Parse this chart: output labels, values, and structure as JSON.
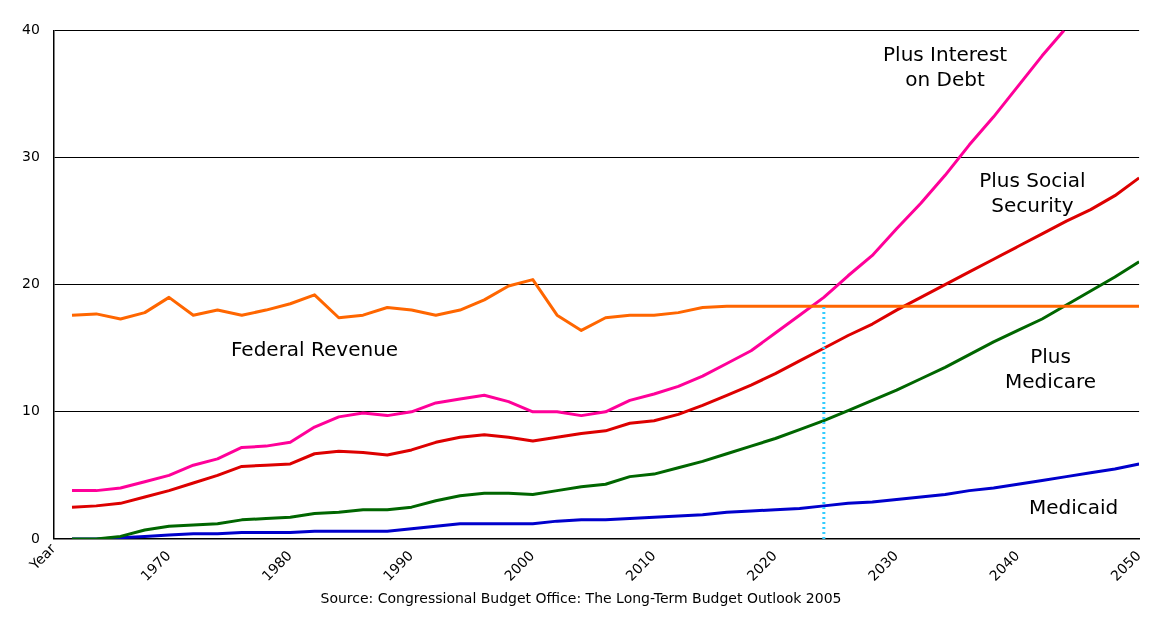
{
  "chart_data": {
    "type": "line",
    "xlabel": "Year",
    "x": [
      1962,
      1964,
      1966,
      1968,
      1970,
      1972,
      1974,
      1976,
      1978,
      1980,
      1982,
      1984,
      1986,
      1988,
      1990,
      1992,
      1994,
      1996,
      1998,
      2000,
      2002,
      2004,
      2006,
      2008,
      2010,
      2012,
      2014,
      2016,
      2018,
      2020,
      2022,
      2024,
      2026,
      2028,
      2030,
      2032,
      2034,
      2036,
      2038,
      2040,
      2042,
      2044,
      2046,
      2048,
      2050
    ],
    "series": [
      {
        "name": "Federal Revenue",
        "color": "#ff6600",
        "values": [
          17.6,
          17.7,
          17.3,
          17.8,
          19.0,
          17.6,
          18.0,
          17.6,
          18.0,
          18.5,
          19.2,
          17.4,
          17.6,
          18.2,
          18.0,
          17.6,
          18.0,
          18.8,
          19.9,
          20.4,
          17.6,
          16.4,
          17.4,
          17.6,
          17.6,
          17.8,
          18.2,
          18.3,
          18.3,
          18.3,
          18.3,
          18.3,
          18.3,
          18.3,
          18.3,
          18.3,
          18.3,
          18.3,
          18.3,
          18.3,
          18.3,
          18.3,
          18.3,
          18.3,
          18.3
        ]
      },
      {
        "name": "Plus Interest on Debt",
        "color": "#ff0099",
        "x": [
          1962,
          1964,
          1966,
          1968,
          1970,
          1972,
          1974,
          1976,
          1978,
          1980,
          1982,
          1984,
          1986,
          1988,
          1990,
          1992,
          1994,
          1996,
          1998,
          2000,
          2002,
          2004,
          2006,
          2008,
          2010,
          2012,
          2014,
          2016,
          2018,
          2020,
          2022,
          2024,
          2026,
          2028,
          2030,
          2032,
          2034,
          2036,
          2038,
          2040,
          2042,
          2043.8
        ],
        "values": [
          3.8,
          3.8,
          4.0,
          4.5,
          5.0,
          5.8,
          6.3,
          7.2,
          7.3,
          7.6,
          8.8,
          9.6,
          9.9,
          9.7,
          10.0,
          10.7,
          11.0,
          11.3,
          10.8,
          10.0,
          10.0,
          9.7,
          10.0,
          10.9,
          11.4,
          12.0,
          12.8,
          13.8,
          14.8,
          16.2,
          17.6,
          19.0,
          20.7,
          22.3,
          24.4,
          26.4,
          28.6,
          31.0,
          33.2,
          35.6,
          38.0,
          40
        ]
      },
      {
        "name": "Plus Social Security",
        "color": "#dd0000",
        "values": [
          2.5,
          2.6,
          2.8,
          3.3,
          3.8,
          4.4,
          5.0,
          5.7,
          5.8,
          5.9,
          6.7,
          6.9,
          6.8,
          6.6,
          7.0,
          7.6,
          8.0,
          8.2,
          8.0,
          7.7,
          8.0,
          8.3,
          8.5,
          9.1,
          9.3,
          9.8,
          10.5,
          11.3,
          12.1,
          13.0,
          14.0,
          15.0,
          16.0,
          16.9,
          18.0,
          19.0,
          20.0,
          21.0,
          22.0,
          23.0,
          24.0,
          25.0,
          25.9,
          27.0,
          28.4
        ]
      },
      {
        "name": "Plus Medicare",
        "color": "#006600",
        "values": [
          0,
          0,
          0.2,
          0.7,
          1.0,
          1.1,
          1.2,
          1.5,
          1.6,
          1.7,
          2.0,
          2.1,
          2.3,
          2.3,
          2.5,
          3.0,
          3.4,
          3.6,
          3.6,
          3.5,
          3.8,
          4.1,
          4.3,
          4.9,
          5.1,
          5.6,
          6.1,
          6.7,
          7.3,
          7.9,
          8.6,
          9.3,
          10.1,
          10.9,
          11.7,
          12.6,
          13.5,
          14.5,
          15.5,
          16.4,
          17.3,
          18.4,
          19.5,
          20.6,
          21.8
        ]
      },
      {
        "name": "Medicaid",
        "color": "#0000cc",
        "values": [
          0,
          0,
          0.1,
          0.2,
          0.3,
          0.4,
          0.4,
          0.5,
          0.5,
          0.5,
          0.6,
          0.6,
          0.6,
          0.6,
          0.8,
          1.0,
          1.2,
          1.2,
          1.2,
          1.2,
          1.4,
          1.5,
          1.5,
          1.6,
          1.7,
          1.8,
          1.9,
          2.1,
          2.2,
          2.3,
          2.4,
          2.6,
          2.8,
          2.9,
          3.1,
          3.3,
          3.5,
          3.8,
          4.0,
          4.3,
          4.6,
          4.9,
          5.2,
          5.5,
          5.9
        ]
      }
    ],
    "xlim": [
      1960.5,
      2050
    ],
    "xticks": [
      1970,
      1980,
      1990,
      2000,
      2010,
      2020,
      2030,
      2040,
      2050
    ],
    "ylim": [
      0,
      40
    ],
    "yticks": [
      0,
      10,
      20,
      30,
      40
    ],
    "grid": "y",
    "legend": false,
    "marker": "none",
    "line_style": "solid",
    "ref_lines": [
      {
        "axis": "x",
        "value": 2024,
        "color": "#33ccff",
        "line_style": "dotted"
      }
    ],
    "annotations": [
      "Source: Congressional Budget Office: The Long-Term Budget Outlook 2005"
    ]
  }
}
